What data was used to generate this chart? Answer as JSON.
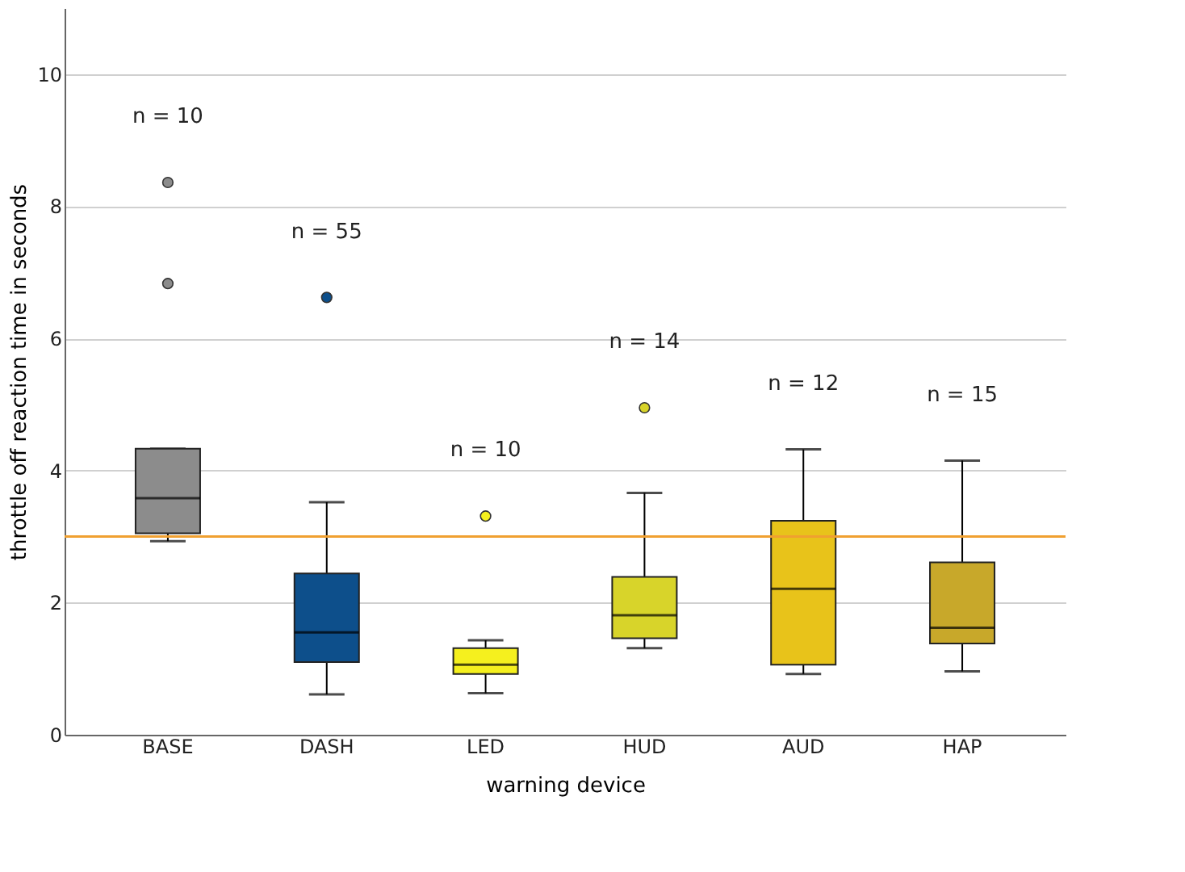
{
  "chart_data": {
    "type": "box",
    "xlabel": "warning device",
    "ylabel": "throttle off reaction time in seconds",
    "categories": [
      "BASE",
      "DASH",
      "LED",
      "HUD",
      "AUD",
      "HAP"
    ],
    "colors": [
      "#8c8c8c",
      "#0d4f8b",
      "#f5f01e",
      "#d8d42a",
      "#e8c31a",
      "#c8a82a"
    ],
    "boxes": [
      {
        "low": 2.93,
        "q1": 3.05,
        "median": 3.58,
        "q3": 4.33,
        "high": 4.33,
        "outliers": [
          6.83,
          8.36
        ]
      },
      {
        "low": 0.61,
        "q1": 1.1,
        "median": 1.55,
        "q3": 2.44,
        "high": 3.52,
        "outliers": [
          6.62
        ]
      },
      {
        "low": 0.63,
        "q1": 0.92,
        "median": 1.06,
        "q3": 1.31,
        "high": 1.43,
        "outliers": [
          3.31
        ]
      },
      {
        "low": 1.31,
        "q1": 1.46,
        "median": 1.81,
        "q3": 2.39,
        "high": 3.66,
        "outliers": [
          4.95
        ]
      },
      {
        "low": 0.92,
        "q1": 1.06,
        "median": 2.21,
        "q3": 3.24,
        "high": 4.32
      },
      {
        "low": 0.96,
        "q1": 1.38,
        "median": 1.62,
        "q3": 2.61,
        "high": 4.15
      }
    ],
    "ylim": [
      0,
      11
    ],
    "yticks": [
      0,
      2,
      4,
      6,
      8,
      10
    ],
    "grid": "y",
    "legend": false,
    "ref_lines": [
      {
        "axis": "y",
        "value": 3.0,
        "color": "#f0a030"
      }
    ],
    "annotations": [
      "n = 10",
      "n = 55",
      "n = 10",
      "n = 14",
      "n = 12",
      "n = 15"
    ]
  }
}
